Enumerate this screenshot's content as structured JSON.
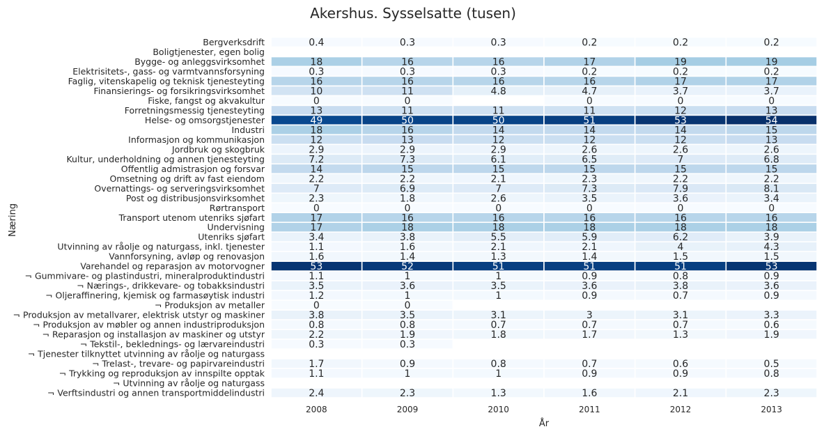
{
  "chart_data": {
    "type": "heatmap",
    "title": "Akershus. Sysselsatte (tusen)",
    "xlabel": "År",
    "ylabel": "Næring",
    "colormap": "Blues",
    "vmin": 0,
    "vmax": 54,
    "grid": false,
    "legend": "none",
    "columns": [
      "2008",
      "2009",
      "2010",
      "2011",
      "2012",
      "2013"
    ],
    "rows": [
      {
        "label": "Bergverksdrift",
        "values": [
          0.4,
          0.3,
          0.3,
          0.2,
          0.2,
          0.2
        ]
      },
      {
        "label": "Boligtjenester, egen bolig",
        "values": [
          null,
          null,
          null,
          null,
          null,
          null
        ]
      },
      {
        "label": "Bygge- og anleggsvirksomhet",
        "values": [
          18,
          16,
          16,
          17,
          19,
          19
        ]
      },
      {
        "label": "Elektrisitets-, gass- og varmtvannsforsyning",
        "values": [
          0.3,
          0.3,
          0.3,
          0.2,
          0.2,
          0.2
        ]
      },
      {
        "label": "Faglig, vitenskapelig og teknisk tjenesteyting",
        "values": [
          16,
          16,
          16,
          16,
          17,
          17
        ]
      },
      {
        "label": "Finansierings- og forsikringsvirksomhet",
        "values": [
          10,
          11,
          4.8,
          4.7,
          3.7,
          3.7
        ]
      },
      {
        "label": "Fiske, fangst og akvakultur",
        "values": [
          0,
          0,
          null,
          0,
          0,
          0
        ]
      },
      {
        "label": "Forretningsmessig tjenesteyting",
        "values": [
          13,
          11,
          11,
          11,
          12,
          13
        ]
      },
      {
        "label": "Helse- og omsorgstjenester",
        "values": [
          49,
          50,
          50,
          51,
          53,
          54
        ]
      },
      {
        "label": "Industri",
        "values": [
          18,
          16,
          14,
          14,
          14,
          15
        ]
      },
      {
        "label": "Informasjon og kommunikasjon",
        "values": [
          12,
          13,
          12,
          12,
          12,
          13
        ]
      },
      {
        "label": "Jordbruk og skogbruk",
        "values": [
          2.9,
          2.9,
          2.9,
          2.6,
          2.6,
          2.6
        ]
      },
      {
        "label": "Kultur, underholdning og annen tjenesteyting",
        "values": [
          7.2,
          7.3,
          6.1,
          6.5,
          7,
          6.8
        ]
      },
      {
        "label": "Offentlig admistrasjon og forsvar",
        "values": [
          14,
          15,
          15,
          15,
          15,
          15
        ]
      },
      {
        "label": "Omsetning og drift av fast eiendom",
        "values": [
          2.2,
          2.2,
          2.1,
          2.3,
          2.2,
          2.2
        ]
      },
      {
        "label": "Overnattings- og serveringsvirksomhet",
        "values": [
          7,
          6.9,
          7,
          7.3,
          7.9,
          8.1
        ]
      },
      {
        "label": "Post og distribusjonsvirksomhet",
        "values": [
          2.3,
          1.8,
          2.6,
          3.5,
          3.6,
          3.4
        ]
      },
      {
        "label": "Rørtransport",
        "values": [
          0,
          0,
          0,
          0,
          0,
          0
        ]
      },
      {
        "label": "Transport utenom utenriks sjøfart",
        "values": [
          17,
          16,
          16,
          16,
          16,
          16
        ]
      },
      {
        "label": "Undervisning",
        "values": [
          17,
          18,
          18,
          18,
          18,
          18
        ]
      },
      {
        "label": "Utenriks sjøfart",
        "values": [
          3.4,
          3.8,
          5.5,
          5.9,
          6.2,
          3.9
        ]
      },
      {
        "label": "Utvinning av råolje og naturgass, inkl. tjenester",
        "values": [
          1.1,
          1.6,
          2.1,
          2.1,
          4,
          4.3
        ]
      },
      {
        "label": "Vannforsyning, avløp og renovasjon",
        "values": [
          1.6,
          1.4,
          1.3,
          1.4,
          1.5,
          1.5
        ]
      },
      {
        "label": "Varehandel og reparasjon av motorvogner",
        "values": [
          53,
          52,
          51,
          51,
          51,
          53
        ]
      },
      {
        "label": "¬ Gummivare- og plastindustri, mineralproduktindustri",
        "values": [
          1.1,
          1,
          1,
          0.9,
          0.8,
          0.9
        ]
      },
      {
        "label": "¬ Nærings-, drikkevare- og tobakksindustri",
        "values": [
          3.5,
          3.6,
          3.5,
          3.6,
          3.8,
          3.6
        ]
      },
      {
        "label": "¬ Oljeraffinering, kjemisk og farmasøytisk industri",
        "values": [
          1.2,
          1,
          1,
          0.9,
          0.7,
          0.9
        ]
      },
      {
        "label": "¬ Produksjon av metaller",
        "values": [
          0,
          0,
          null,
          null,
          null,
          null
        ]
      },
      {
        "label": "¬ Produksjon av metallvarer, elektrisk utstyr og maskiner",
        "values": [
          3.8,
          3.5,
          3.1,
          3,
          3.1,
          3.3
        ]
      },
      {
        "label": "¬ Produksjon av møbler og annen industriproduksjon",
        "values": [
          0.8,
          0.8,
          0.7,
          0.7,
          0.7,
          0.6
        ]
      },
      {
        "label": "¬ Reparasjon og installasjon av maskiner og utstyr",
        "values": [
          2.2,
          1.9,
          1.8,
          1.7,
          1.3,
          1.9
        ]
      },
      {
        "label": "¬ Tekstil-, beklednings- og lærvareindustri",
        "values": [
          0.3,
          0.3,
          null,
          null,
          null,
          null
        ]
      },
      {
        "label": "¬ Tjenester tilknyttet utvinning av råolje og naturgass",
        "values": [
          null,
          null,
          null,
          null,
          null,
          null
        ]
      },
      {
        "label": "¬ Trelast-, trevare- og papirvareindustri",
        "values": [
          1.7,
          0.9,
          0.8,
          0.7,
          0.6,
          0.5
        ]
      },
      {
        "label": "¬ Trykking og reproduksjon av innspilte opptak",
        "values": [
          1.1,
          1,
          1,
          0.9,
          0.9,
          0.8
        ]
      },
      {
        "label": "¬ Utvinning av råolje og naturgass",
        "values": [
          null,
          null,
          null,
          null,
          null,
          null
        ]
      },
      {
        "label": "¬ Verftsindustri og annen transportmiddelindustri",
        "values": [
          2.4,
          2.3,
          1.3,
          1.6,
          2.1,
          2.3
        ]
      }
    ]
  }
}
